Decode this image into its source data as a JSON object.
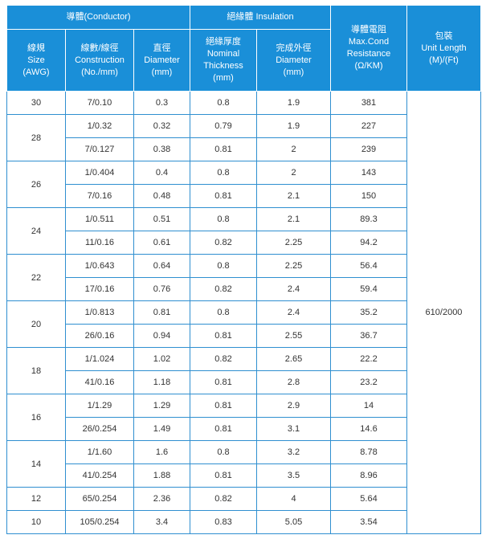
{
  "headers": {
    "conductor": "導體(Conductor)",
    "insulation": "絕緣體 Insulation",
    "resistance": [
      "導體電阻",
      "Max.Cond",
      "Resistance",
      "(Ω/KM)"
    ],
    "package": [
      "包裝",
      "Unit Length",
      "(M)/(Ft)"
    ],
    "size": [
      "線規",
      "Size",
      "(AWG)"
    ],
    "construction": [
      "線數/線徑",
      "Construction",
      "(No./mm)"
    ],
    "diameter": [
      "直徑",
      "Diameter",
      "(mm)"
    ],
    "thickness": [
      "絕緣厚度",
      "Nominal",
      "Thickness",
      "(mm)"
    ],
    "outer_diameter": [
      "完成外徑",
      "Diameter",
      "(mm)"
    ]
  },
  "package_value": "610/2000",
  "groups": [
    {
      "awg": "30",
      "rows": [
        {
          "construction": "7/0.10",
          "diameter": "0.3",
          "thickness": "0.8",
          "od": "1.9",
          "resistance": "381"
        }
      ]
    },
    {
      "awg": "28",
      "rows": [
        {
          "construction": "1/0.32",
          "diameter": "0.32",
          "thickness": "0.79",
          "od": "1.9",
          "resistance": "227"
        },
        {
          "construction": "7/0.127",
          "diameter": "0.38",
          "thickness": "0.81",
          "od": "2",
          "resistance": "239"
        }
      ]
    },
    {
      "awg": "26",
      "rows": [
        {
          "construction": "1/0.404",
          "diameter": "0.4",
          "thickness": "0.8",
          "od": "2",
          "resistance": "143"
        },
        {
          "construction": "7/0.16",
          "diameter": "0.48",
          "thickness": "0.81",
          "od": "2.1",
          "resistance": "150"
        }
      ]
    },
    {
      "awg": "24",
      "rows": [
        {
          "construction": "1/0.511",
          "diameter": "0.51",
          "thickness": "0.8",
          "od": "2.1",
          "resistance": "89.3"
        },
        {
          "construction": "11/0.16",
          "diameter": "0.61",
          "thickness": "0.82",
          "od": "2.25",
          "resistance": "94.2"
        }
      ]
    },
    {
      "awg": "22",
      "rows": [
        {
          "construction": "1/0.643",
          "diameter": "0.64",
          "thickness": "0.8",
          "od": "2.25",
          "resistance": "56.4"
        },
        {
          "construction": "17/0.16",
          "diameter": "0.76",
          "thickness": "0.82",
          "od": "2.4",
          "resistance": "59.4"
        }
      ]
    },
    {
      "awg": "20",
      "rows": [
        {
          "construction": "1/0.813",
          "diameter": "0.81",
          "thickness": "0.8",
          "od": "2.4",
          "resistance": "35.2"
        },
        {
          "construction": "26/0.16",
          "diameter": "0.94",
          "thickness": "0.81",
          "od": "2.55",
          "resistance": "36.7"
        }
      ]
    },
    {
      "awg": "18",
      "rows": [
        {
          "construction": "1/1.024",
          "diameter": "1.02",
          "thickness": "0.82",
          "od": "2.65",
          "resistance": "22.2"
        },
        {
          "construction": "41/0.16",
          "diameter": "1.18",
          "thickness": "0.81",
          "od": "2.8",
          "resistance": "23.2"
        }
      ]
    },
    {
      "awg": "16",
      "rows": [
        {
          "construction": "1/1.29",
          "diameter": "1.29",
          "thickness": "0.81",
          "od": "2.9",
          "resistance": "14"
        },
        {
          "construction": "26/0.254",
          "diameter": "1.49",
          "thickness": "0.81",
          "od": "3.1",
          "resistance": "14.6"
        }
      ]
    },
    {
      "awg": "14",
      "rows": [
        {
          "construction": "1/1.60",
          "diameter": "1.6",
          "thickness": "0.8",
          "od": "3.2",
          "resistance": "8.78"
        },
        {
          "construction": "41/0.254",
          "diameter": "1.88",
          "thickness": "0.81",
          "od": "3.5",
          "resistance": "8.96"
        }
      ]
    },
    {
      "awg": "12",
      "rows": [
        {
          "construction": "65/0.254",
          "diameter": "2.36",
          "thickness": "0.82",
          "od": "4",
          "resistance": "5.64"
        }
      ]
    },
    {
      "awg": "10",
      "rows": [
        {
          "construction": "105/0.254",
          "diameter": "3.4",
          "thickness": "0.83",
          "od": "5.05",
          "resistance": "3.54"
        }
      ]
    }
  ]
}
